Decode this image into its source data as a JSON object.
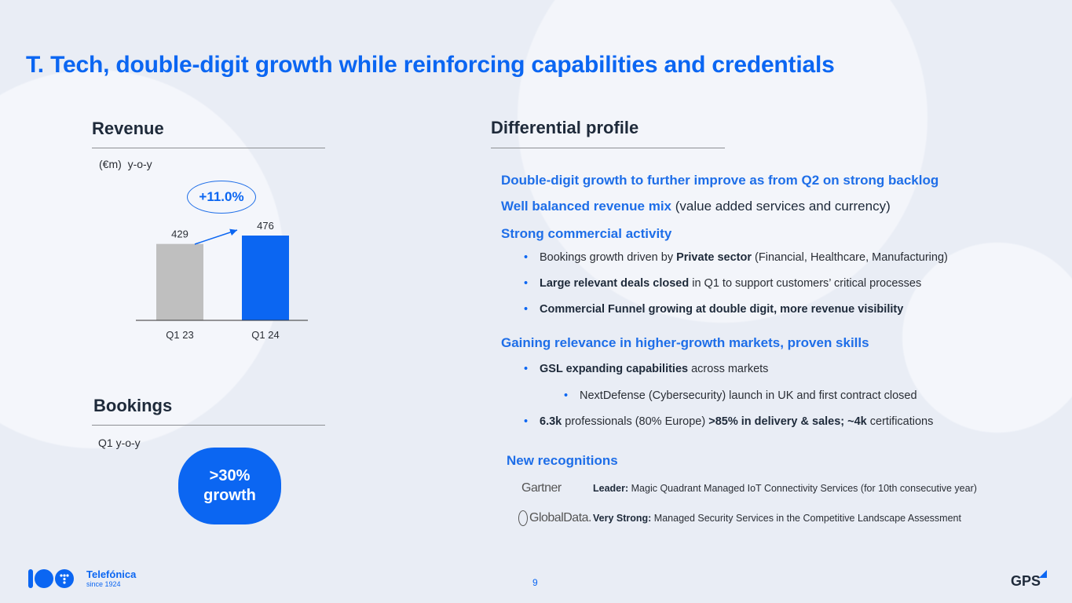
{
  "title": "T. Tech, double-digit growth while reinforcing capabilities and credentials",
  "revenue": {
    "heading": "Revenue",
    "unit": "(€m)",
    "yoy_label": "y-o-y",
    "growth": "+11.0%",
    "categories": [
      "Q1 23",
      "Q1 24"
    ],
    "value_labels": [
      "429",
      "476"
    ]
  },
  "chart_data": {
    "type": "bar",
    "categories": [
      "Q1 23",
      "Q1 24"
    ],
    "values": [
      429,
      476
    ],
    "colors": [
      "#bfbfbf",
      "#0b66f2"
    ],
    "title": "Revenue",
    "xlabel": "",
    "ylabel": "",
    "grid": false
  },
  "bookings": {
    "heading": "Bookings",
    "label": "Q1 y-o-y",
    "value": ">30%",
    "value_sub": "growth"
  },
  "profile": {
    "heading": "Differential profile",
    "h1": "Double-digit growth to further improve as from Q2 on strong backlog",
    "h2_bold": "Well balanced revenue mix",
    "h2_plain": " (value added services and currency)",
    "h3": "Strong commercial activity",
    "b1_pre": "Bookings growth driven by ",
    "b1_bold": "Private sector",
    "b1_post": " (Financial, Healthcare, Manufacturing)",
    "b2_bold": "Large relevant deals closed",
    "b2_post": " in Q1 to support customers’ critical processes",
    "b3_bold": "Commercial Funnel growing at double digit, more revenue visibility",
    "h4": "Gaining relevance in higher-growth markets, proven skills",
    "b4_bold": "GSL expanding capabilities",
    "b4_post": " across markets",
    "b5": "NextDefense (Cybersecurity) launch in UK  and first contract closed",
    "b6_bold1": "6.3k",
    "b6_mid": " professionals (80% Europe) ",
    "b6_bold2": ">85% in delivery & sales; ~4k",
    "b6_post": " certifications"
  },
  "recognitions": {
    "heading": "New recognitions",
    "items": [
      {
        "logo": "Gartner",
        "bold": "Leader:",
        "text": " Magic Quadrant Managed IoT Connectivity Services (for 10th consecutive year)"
      },
      {
        "logo": "GlobalData.",
        "bold": "Very Strong:",
        "text": " Managed Security Services in the Competitive Landscape Assessment"
      }
    ]
  },
  "footer": {
    "brand": "Telefónica",
    "since": "since 1924",
    "page": "9",
    "right_logo": "GPS"
  },
  "colors": {
    "accent": "#0b66f2",
    "bar_prev": "#bfbfbf"
  }
}
